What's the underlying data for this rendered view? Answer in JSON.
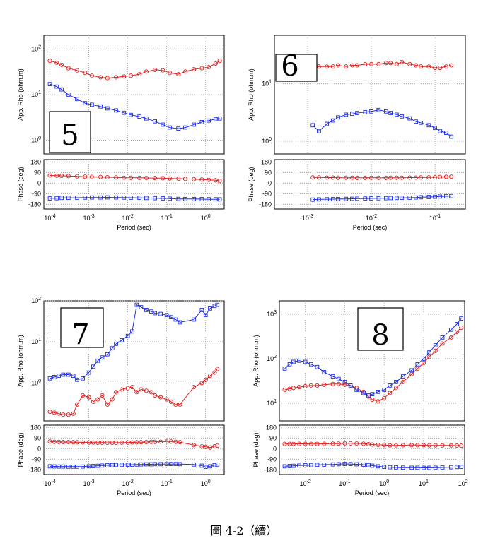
{
  "caption": "圖 4-2（續）",
  "colors": {
    "te": "#e02020",
    "tm": "#2030e0",
    "frame": "#000000",
    "grid": "#999999"
  },
  "chart_data": [
    {
      "type": "scatter",
      "site_label": "5",
      "xlabel": "Period (sec)",
      "rho_ylabel": "App. Rho (ohm.m)",
      "phase_ylabel": "Phase (deg)",
      "x_scale": "log",
      "rho_scale": "log",
      "xlim": [
        7e-05,
        3
      ],
      "rho_ylim": [
        0.5,
        200
      ],
      "phase_ylim": [
        -220,
        200
      ],
      "x_ticks": [
        {
          "v": 0.0001,
          "m": "10",
          "e": "-4"
        },
        {
          "v": 0.001,
          "m": "10",
          "e": "-3"
        },
        {
          "v": 0.01,
          "m": "10",
          "e": "-2"
        },
        {
          "v": 0.1,
          "m": "10",
          "e": "-1"
        },
        {
          "v": 1,
          "m": "10",
          "e": "0"
        }
      ],
      "rho_ticks": [
        {
          "v": 1,
          "m": "10",
          "e": "0"
        },
        {
          "v": 10,
          "m": "10",
          "e": "1"
        },
        {
          "v": 100,
          "m": "10",
          "e": "2"
        }
      ],
      "phase_ticks": [
        180,
        90,
        0,
        -90,
        -180
      ],
      "series": [
        {
          "component": "te",
          "marker": "circle",
          "x": [
            0.0001,
            0.00015,
            0.0002,
            0.0003,
            0.0005,
            0.0008,
            0.0012,
            0.002,
            0.003,
            0.005,
            0.008,
            0.012,
            0.02,
            0.03,
            0.05,
            0.08,
            0.12,
            0.2,
            0.3,
            0.5,
            0.8,
            1.2,
            1.8,
            2.3
          ],
          "rho": [
            55,
            50,
            45,
            38,
            34,
            30,
            26,
            24,
            23,
            24,
            25,
            26,
            28,
            32,
            35,
            34,
            30,
            28,
            32,
            36,
            38,
            40,
            48,
            55
          ],
          "phase": [
            65,
            63,
            62,
            60,
            58,
            55,
            53,
            52,
            50,
            48,
            46,
            45,
            45,
            44,
            43,
            42,
            40,
            38,
            36,
            33,
            30,
            28,
            24,
            18
          ]
        },
        {
          "component": "tm",
          "marker": "square",
          "x": [
            0.0001,
            0.00015,
            0.0002,
            0.0003,
            0.0005,
            0.0008,
            0.0012,
            0.002,
            0.003,
            0.005,
            0.008,
            0.012,
            0.02,
            0.03,
            0.05,
            0.08,
            0.12,
            0.2,
            0.3,
            0.5,
            0.8,
            1.2,
            1.8,
            2.3
          ],
          "rho": [
            17,
            15,
            13,
            10,
            8,
            6.5,
            6,
            5.5,
            5,
            4.5,
            4,
            3.6,
            3.3,
            3,
            2.6,
            2.2,
            1.9,
            1.8,
            1.9,
            2.2,
            2.5,
            2.7,
            2.9,
            3
          ],
          "phase": [
            -130,
            -128,
            -126,
            -125,
            -124,
            -123,
            -122,
            -122,
            -121,
            -122,
            -123,
            -124,
            -125,
            -126,
            -128,
            -130,
            -132,
            -134,
            -135,
            -135,
            -136,
            -137,
            -137,
            -138
          ]
        }
      ]
    },
    {
      "type": "scatter",
      "site_label": "6",
      "xlabel": "Period (sec)",
      "rho_ylabel": "App. Rho (ohm.m)",
      "phase_ylabel": "Phase (deg)",
      "x_scale": "log",
      "rho_scale": "log",
      "xlim": [
        0.0003,
        0.3
      ],
      "rho_ylim": [
        0.6,
        70
      ],
      "phase_ylim": [
        -220,
        200
      ],
      "x_ticks": [
        {
          "v": 0.001,
          "m": "10",
          "e": "-3"
        },
        {
          "v": 0.01,
          "m": "10",
          "e": "-2"
        },
        {
          "v": 0.1,
          "m": "10",
          "e": "-1"
        }
      ],
      "rho_ticks": [
        {
          "v": 1,
          "m": "10",
          "e": "0"
        },
        {
          "v": 10,
          "m": "10",
          "e": "1"
        }
      ],
      "phase_ticks": [
        180,
        90,
        0,
        -90,
        -180
      ],
      "series": [
        {
          "component": "te",
          "marker": "circle",
          "x": [
            0.0012,
            0.0015,
            0.002,
            0.0025,
            0.003,
            0.004,
            0.005,
            0.006,
            0.008,
            0.01,
            0.013,
            0.017,
            0.02,
            0.025,
            0.03,
            0.04,
            0.05,
            0.06,
            0.08,
            0.1,
            0.12,
            0.15,
            0.18
          ],
          "rho": [
            19,
            20,
            20,
            20,
            21,
            20,
            21,
            21,
            22,
            22,
            22,
            23,
            23,
            22,
            24,
            22,
            21,
            20,
            20,
            19,
            19,
            20,
            21
          ],
          "phase": [
            48,
            48,
            47,
            47,
            46,
            46,
            46,
            45,
            45,
            45,
            45,
            45,
            46,
            46,
            46,
            47,
            47,
            48,
            49,
            50,
            52,
            54,
            55
          ]
        },
        {
          "component": "tm",
          "marker": "square",
          "x": [
            0.0012,
            0.0015,
            0.002,
            0.0025,
            0.003,
            0.004,
            0.005,
            0.006,
            0.008,
            0.01,
            0.013,
            0.017,
            0.02,
            0.025,
            0.03,
            0.04,
            0.05,
            0.06,
            0.08,
            0.1,
            0.12,
            0.15,
            0.18
          ],
          "rho": [
            1.9,
            1.5,
            2,
            2.3,
            2.6,
            2.9,
            3,
            3.1,
            3.2,
            3.3,
            3.5,
            3.3,
            3.1,
            2.9,
            2.7,
            2.5,
            2.2,
            2.1,
            1.9,
            1.7,
            1.5,
            1.4,
            1.2
          ],
          "phase": [
            -140,
            -138,
            -137,
            -136,
            -135,
            -134,
            -133,
            -132,
            -131,
            -130,
            -129,
            -128,
            -127,
            -126,
            -125,
            -124,
            -122,
            -120,
            -118,
            -116,
            -114,
            -112,
            -110
          ]
        }
      ]
    },
    {
      "type": "scatter",
      "site_label": "7",
      "xlabel": "Period (sec)",
      "rho_ylabel": "App. Rho (ohm.m)",
      "phase_ylabel": "Phase (deg)",
      "x_scale": "log",
      "rho_scale": "log",
      "xlim": [
        7e-05,
        3
      ],
      "rho_ylim": [
        0.12,
        100
      ],
      "phase_ylim": [
        -220,
        200
      ],
      "x_ticks": [
        {
          "v": 0.0001,
          "m": "10",
          "e": "-4"
        },
        {
          "v": 0.001,
          "m": "10",
          "e": "-3"
        },
        {
          "v": 0.01,
          "m": "10",
          "e": "-2"
        },
        {
          "v": 0.1,
          "m": "10",
          "e": "-1"
        },
        {
          "v": 1,
          "m": "10",
          "e": "0"
        }
      ],
      "rho_ticks": [
        {
          "v": 1,
          "m": "10",
          "e": "0"
        },
        {
          "v": 10,
          "m": "10",
          "e": "1"
        },
        {
          "v": 100,
          "m": "10",
          "e": "2"
        }
      ],
      "phase_ticks": [
        180,
        90,
        0,
        -90,
        -180
      ],
      "series": [
        {
          "component": "te",
          "marker": "circle",
          "x": [
            0.0001,
            0.00013,
            0.00017,
            0.00022,
            0.0003,
            0.0004,
            0.0005,
            0.0007,
            0.001,
            0.0013,
            0.0017,
            0.0022,
            0.003,
            0.004,
            0.005,
            0.007,
            0.01,
            0.013,
            0.017,
            0.022,
            0.03,
            0.04,
            0.05,
            0.07,
            0.1,
            0.13,
            0.17,
            0.22,
            0.5,
            0.8,
            1,
            1.3,
            1.7,
            2
          ],
          "rho": [
            0.2,
            0.19,
            0.18,
            0.17,
            0.17,
            0.18,
            0.3,
            0.5,
            0.45,
            0.35,
            0.4,
            0.5,
            0.3,
            0.4,
            0.6,
            0.7,
            0.75,
            0.8,
            0.6,
            0.7,
            0.65,
            0.6,
            0.5,
            0.45,
            0.4,
            0.35,
            0.3,
            0.3,
            0.8,
            1.0,
            1.2,
            1.5,
            1.8,
            2.2
          ],
          "phase": [
            60,
            58,
            57,
            56,
            56,
            55,
            54,
            53,
            52,
            52,
            51,
            51,
            50,
            50,
            50,
            51,
            52,
            53,
            54,
            55,
            56,
            57,
            58,
            59,
            60,
            60,
            58,
            55,
            30,
            20,
            15,
            10,
            20,
            25
          ]
        },
        {
          "component": "tm",
          "marker": "square",
          "x": [
            0.0001,
            0.00013,
            0.00017,
            0.00022,
            0.0003,
            0.0004,
            0.0005,
            0.0007,
            0.001,
            0.0013,
            0.0017,
            0.0022,
            0.003,
            0.004,
            0.005,
            0.007,
            0.01,
            0.013,
            0.017,
            0.022,
            0.03,
            0.04,
            0.05,
            0.07,
            0.1,
            0.13,
            0.17,
            0.22,
            0.5,
            0.8,
            1,
            1.3,
            1.7,
            2
          ],
          "rho": [
            1.3,
            1.4,
            1.5,
            1.6,
            1.6,
            1.5,
            1.2,
            1.3,
            1.8,
            2.5,
            3.5,
            4.2,
            5,
            7,
            9,
            11,
            14,
            18,
            80,
            70,
            60,
            55,
            50,
            48,
            45,
            40,
            35,
            30,
            35,
            60,
            45,
            65,
            75,
            80
          ],
          "phase": [
            -150,
            -151,
            -152,
            -152,
            -153,
            -153,
            -153,
            -152,
            -150,
            -148,
            -146,
            -144,
            -142,
            -140,
            -139,
            -138,
            -137,
            -136,
            -135,
            -134,
            -133,
            -133,
            -132,
            -132,
            -131,
            -131,
            -131,
            -132,
            -135,
            -145,
            -155,
            -150,
            -140,
            -135
          ]
        }
      ]
    },
    {
      "type": "scatter",
      "site_label": "8",
      "xlabel": "Period (sec)",
      "rho_ylabel": "App. Rho (ohm.m)",
      "phase_ylabel": "Phase (deg)",
      "x_scale": "log",
      "rho_scale": "log",
      "xlim": [
        0.0022,
        110
      ],
      "rho_ylim": [
        4,
        2000
      ],
      "phase_ylim": [
        -220,
        200
      ],
      "x_ticks": [
        {
          "v": 0.01,
          "m": "10",
          "e": "-2"
        },
        {
          "v": 0.1,
          "m": "10",
          "e": "-1"
        },
        {
          "v": 1,
          "m": "10",
          "e": "0"
        },
        {
          "v": 10,
          "m": "10",
          "e": "1"
        },
        {
          "v": 100,
          "m": "10",
          "e": "2"
        }
      ],
      "rho_ticks": [
        {
          "v": 10,
          "m": "10",
          "e": "1"
        },
        {
          "v": 100,
          "m": "10",
          "e": "2"
        },
        {
          "v": 1000,
          "m": "10",
          "e": "3"
        }
      ],
      "phase_ticks": [
        180,
        90,
        0,
        -90,
        -180
      ],
      "series": [
        {
          "component": "te",
          "marker": "circle",
          "x": [
            0.003,
            0.004,
            0.005,
            0.007,
            0.01,
            0.014,
            0.02,
            0.03,
            0.05,
            0.07,
            0.1,
            0.14,
            0.2,
            0.3,
            0.4,
            0.5,
            0.7,
            1,
            1.4,
            2,
            3,
            5,
            7,
            10,
            14,
            20,
            30,
            50,
            70,
            90
          ],
          "rho": [
            20,
            21,
            22,
            23,
            24,
            25,
            25,
            26,
            27,
            27,
            26,
            25,
            22,
            18,
            14,
            12,
            11,
            13,
            17,
            22,
            30,
            45,
            60,
            80,
            110,
            150,
            220,
            300,
            400,
            500
          ],
          "phase": [
            40,
            40,
            40,
            41,
            41,
            40,
            40,
            41,
            42,
            43,
            45,
            45,
            44,
            42,
            38,
            35,
            32,
            30,
            28,
            28,
            29,
            30,
            30,
            29,
            28,
            28,
            27,
            27,
            26,
            25
          ]
        },
        {
          "component": "tm",
          "marker": "square",
          "x": [
            0.003,
            0.004,
            0.005,
            0.007,
            0.01,
            0.014,
            0.02,
            0.03,
            0.05,
            0.07,
            0.1,
            0.14,
            0.2,
            0.3,
            0.4,
            0.5,
            0.7,
            1,
            1.4,
            2,
            3,
            5,
            7,
            10,
            14,
            20,
            30,
            50,
            70,
            90
          ],
          "rho": [
            60,
            75,
            85,
            90,
            85,
            75,
            65,
            50,
            40,
            35,
            30,
            25,
            20,
            17,
            15,
            16,
            18,
            20,
            25,
            30,
            40,
            55,
            75,
            100,
            140,
            200,
            300,
            450,
            600,
            800
          ],
          "phase": [
            -150,
            -148,
            -146,
            -144,
            -142,
            -140,
            -138,
            -136,
            -134,
            -132,
            -130,
            -131,
            -133,
            -136,
            -140,
            -145,
            -150,
            -155,
            -158,
            -160,
            -161,
            -162,
            -162,
            -163,
            -163,
            -162,
            -160,
            -158,
            -156,
            -155
          ]
        }
      ]
    }
  ]
}
